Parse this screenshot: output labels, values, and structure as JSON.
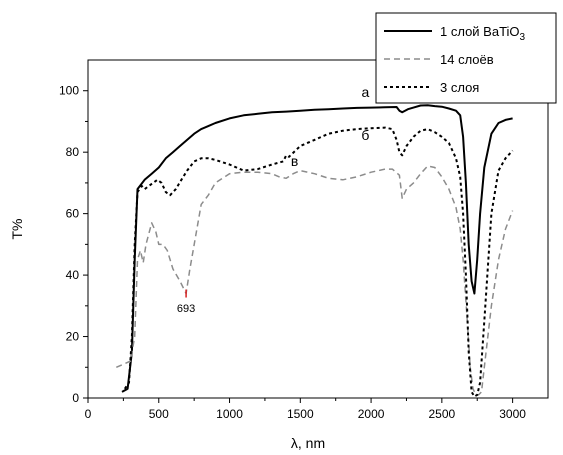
{
  "chart_data": {
    "type": "line",
    "xlabel": "λ, nm",
    "ylabel": "T%",
    "xlim": [
      0,
      3250
    ],
    "ylim": [
      0,
      110
    ],
    "xticks": [
      0,
      500,
      1000,
      1500,
      2000,
      2500,
      3000
    ],
    "yticks": [
      0,
      20,
      40,
      60,
      80,
      100
    ],
    "grid": false,
    "legend_position": "top-right",
    "series": [
      {
        "name": "1 слой BaTiO",
        "name_subscript": "3",
        "color": "#000000",
        "dash": "solid",
        "x": [
          240,
          280,
          310,
          330,
          350,
          400,
          450,
          500,
          550,
          600,
          650,
          700,
          750,
          800,
          850,
          900,
          1000,
          1100,
          1200,
          1300,
          1400,
          1500,
          1600,
          1700,
          1800,
          1900,
          2000,
          2100,
          2180,
          2200,
          2220,
          2260,
          2300,
          2350,
          2400,
          2450,
          2500,
          2550,
          2600,
          2630,
          2650,
          2670,
          2690,
          2710,
          2730,
          2750,
          2770,
          2800,
          2850,
          2900,
          2950,
          3000
        ],
        "y": [
          2,
          3,
          15,
          45,
          68,
          71,
          73,
          75,
          78,
          80,
          82,
          84,
          86,
          87.5,
          88.5,
          89.5,
          91,
          92,
          92.5,
          93,
          93.2,
          93.5,
          93.8,
          94,
          94.2,
          94.4,
          94.5,
          94.6,
          94.7,
          93.5,
          93,
          94,
          94.5,
          95.2,
          95.3,
          95,
          94.8,
          94.2,
          93.5,
          92,
          85,
          70,
          50,
          38,
          34,
          45,
          60,
          75,
          86,
          89.5,
          90.5,
          91
        ]
      },
      {
        "name": "14 слоёв",
        "color": "#8c8c8c",
        "dash": "dashed",
        "x": [
          200,
          250,
          300,
          330,
          350,
          370,
          390,
          410,
          450,
          480,
          500,
          530,
          560,
          600,
          650,
          693,
          720,
          750,
          800,
          850,
          900,
          1000,
          1100,
          1200,
          1300,
          1350,
          1400,
          1450,
          1500,
          1600,
          1700,
          1800,
          1900,
          2000,
          2100,
          2150,
          2200,
          2220,
          2250,
          2300,
          2350,
          2400,
          2450,
          2500,
          2550,
          2600,
          2630,
          2650,
          2680,
          2700,
          2720,
          2740,
          2760,
          2780,
          2800,
          2850,
          2900,
          2950,
          3000
        ],
        "y": [
          10,
          11,
          12,
          20,
          45,
          48,
          44,
          50,
          57,
          54,
          50,
          50,
          48,
          42,
          38,
          34,
          42,
          50,
          63,
          66,
          70,
          73,
          73.5,
          73.5,
          73,
          72,
          71.5,
          73,
          74,
          73,
          71.5,
          71,
          72,
          73.5,
          74.5,
          74.5,
          72.5,
          65,
          68,
          70,
          73,
          75.5,
          75,
          72,
          68,
          62,
          55,
          45,
          25,
          10,
          3,
          1,
          1,
          2,
          10,
          30,
          45,
          55,
          61
        ]
      },
      {
        "name": "3 слоя",
        "color": "#000000",
        "dash": "dotted",
        "x": [
          260,
          290,
          310,
          330,
          350,
          380,
          400,
          430,
          460,
          490,
          520,
          550,
          580,
          620,
          660,
          700,
          750,
          800,
          850,
          900,
          1000,
          1100,
          1200,
          1300,
          1380,
          1400,
          1420,
          1500,
          1600,
          1700,
          1800,
          1900,
          2000,
          2100,
          2150,
          2180,
          2200,
          2220,
          2250,
          2300,
          2350,
          2400,
          2450,
          2500,
          2550,
          2600,
          2630,
          2650,
          2670,
          2690,
          2710,
          2730,
          2750,
          2770,
          2800,
          2850,
          2900,
          2950,
          3000
        ],
        "y": [
          3,
          5,
          20,
          50,
          67,
          69,
          68,
          69,
          70,
          71,
          70,
          67,
          66,
          68,
          71,
          74,
          77,
          78,
          78,
          77.5,
          76,
          74,
          74.5,
          76,
          77,
          79,
          78.5,
          82,
          84,
          86,
          87,
          87.5,
          87.8,
          88,
          87.5,
          84,
          80,
          79,
          82,
          85,
          87,
          87.5,
          86.5,
          85,
          83,
          78,
          72,
          60,
          40,
          15,
          2,
          0.5,
          1,
          5,
          25,
          60,
          74,
          78,
          80.5
        ]
      }
    ],
    "annotations": [
      {
        "text": "а",
        "x": 1960,
        "y": 98
      },
      {
        "text": "б",
        "x": 1960,
        "y": 84
      },
      {
        "text": "в",
        "x": 1460,
        "y": 75.5
      },
      {
        "text": "693",
        "x": 693,
        "y": 28,
        "marker_x": 693,
        "marker_y": 34
      }
    ]
  }
}
